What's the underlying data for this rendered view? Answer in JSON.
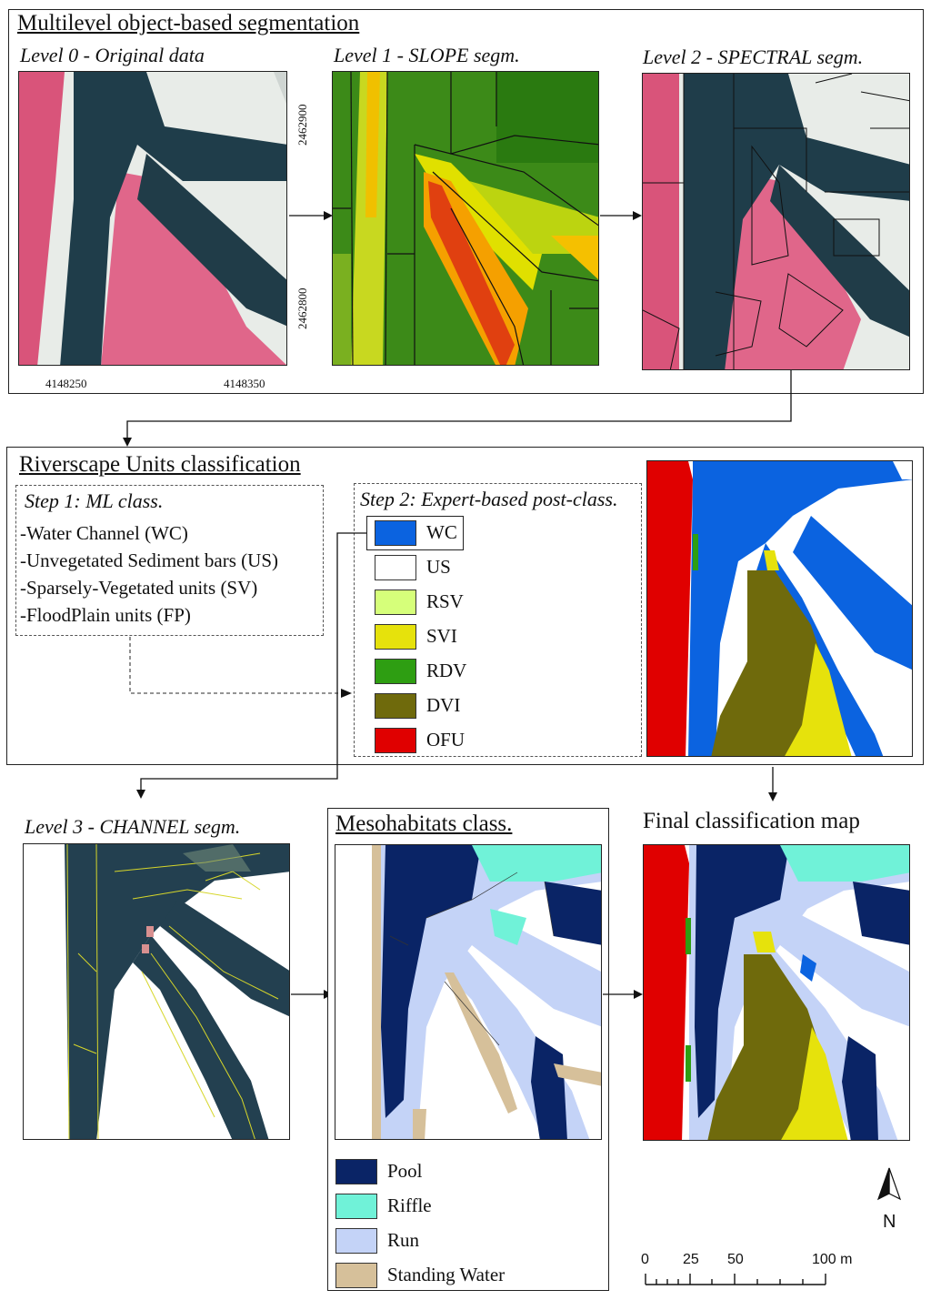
{
  "segmentation": {
    "title": "Multilevel object-based segmentation",
    "level0": {
      "title": "Level 0 - Original data"
    },
    "level1": {
      "title": "Level 1 - SLOPE segm."
    },
    "level2": {
      "title": "Level 2 - SPECTRAL segm."
    },
    "coords": {
      "x1": "4148250",
      "x2": "4148350",
      "y1": "2462900",
      "y2": "2462800"
    }
  },
  "riverscape": {
    "title": "Riverscape Units classification",
    "step1": {
      "title": "Step 1: ML class.",
      "items": [
        "-Water Channel (WC)",
        "-Unvegetated Sediment bars (US)",
        "-Sparsely-Vegetated units (SV)",
        "-FloodPlain units (FP)"
      ]
    },
    "step2": {
      "title": "Step 2: Expert-based post-class.",
      "legend": [
        {
          "label": "WC",
          "color": "#0b63e0"
        },
        {
          "label": "US",
          "color": "#ffffff"
        },
        {
          "label": "RSV",
          "color": "#d6ff7a"
        },
        {
          "label": "SVI",
          "color": "#e6e20c"
        },
        {
          "label": "RDV",
          "color": "#2e9e12"
        },
        {
          "label": "DVI",
          "color": "#6f6a0c"
        },
        {
          "label": "OFU",
          "color": "#e00000"
        }
      ]
    }
  },
  "level3": {
    "title": "Level 3 - CHANNEL segm."
  },
  "mesohabitats": {
    "title": "Mesohabitats class.",
    "legend": [
      {
        "label": "Pool",
        "color": "#0a2466"
      },
      {
        "label": "Riffle",
        "color": "#70f2d8"
      },
      {
        "label": "Run",
        "color": "#c4d3f7"
      },
      {
        "label": "Standing Water",
        "color": "#d6c09a"
      }
    ]
  },
  "final": {
    "title": "Final classification map"
  },
  "north": {
    "label": "N"
  },
  "scale": {
    "ticks": [
      "0",
      "25",
      "50",
      "100 m"
    ]
  }
}
